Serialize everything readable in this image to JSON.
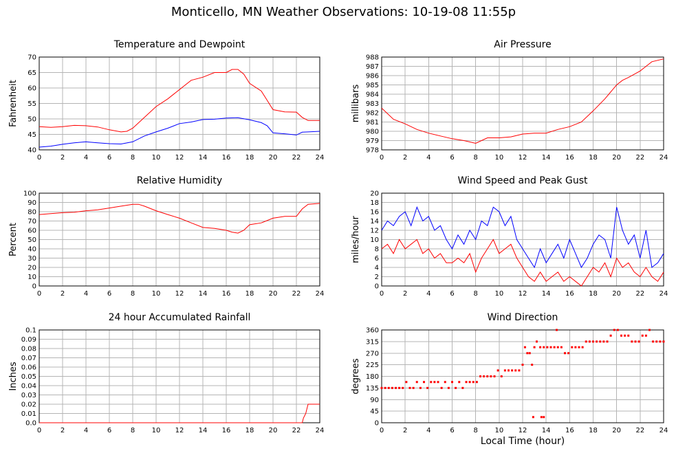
{
  "title": "Monticello, MN Weather Observations: 10-19-08 11:55p",
  "x_axis_title": "Local Time (hour)",
  "colors": {
    "temperature": "#ff0000",
    "dewpoint": "#0000ff",
    "gust": "#0000ff",
    "wind": "#ff0000",
    "pressure": "#ff0000",
    "humidity": "#ff0000",
    "rain": "#ff0000",
    "direction": "#ff0000",
    "grid": "#b4b4b4"
  },
  "chart_data": [
    {
      "id": "temperature",
      "type": "line",
      "title": "Temperature and Dewpoint",
      "ylabel": "Fahrenheit",
      "xlabel": "",
      "xlim": [
        0,
        24
      ],
      "ylim": [
        40,
        70
      ],
      "xticks": [
        0,
        2,
        4,
        6,
        8,
        10,
        12,
        14,
        16,
        18,
        20,
        22,
        24
      ],
      "yticks": [
        40,
        45,
        50,
        55,
        60,
        65,
        70
      ],
      "grid": true,
      "series": [
        {
          "color": "#ff0000",
          "x": [
            0,
            1,
            2,
            3,
            4,
            5,
            6,
            7,
            7.5,
            8,
            9,
            10,
            11,
            12,
            13,
            14,
            15,
            16,
            16.5,
            17,
            17.5,
            18,
            19,
            19.5,
            20,
            21,
            22,
            22.5,
            23,
            24
          ],
          "y": [
            47.5,
            47.3,
            47.5,
            47.9,
            47.8,
            47.4,
            46.5,
            45.8,
            46.0,
            47.0,
            50.5,
            54.0,
            56.5,
            59.5,
            62.5,
            63.5,
            65.0,
            65.0,
            66.0,
            66.0,
            64.5,
            61.5,
            59.0,
            56.0,
            53.0,
            52.3,
            52.2,
            50.5,
            49.5,
            49.5
          ]
        },
        {
          "color": "#0000ff",
          "x": [
            0,
            1,
            2,
            3,
            4,
            5,
            6,
            7,
            8,
            9,
            10,
            11,
            12,
            13,
            14,
            15,
            16,
            17,
            18,
            19,
            19.5,
            20,
            21,
            22,
            22.5,
            23,
            24
          ],
          "y": [
            40.9,
            41.2,
            41.8,
            42.3,
            42.6,
            42.3,
            42.0,
            41.9,
            42.6,
            44.5,
            45.8,
            47.0,
            48.5,
            49.0,
            49.8,
            49.9,
            50.3,
            50.4,
            49.7,
            48.8,
            47.8,
            45.5,
            45.2,
            44.8,
            45.7,
            45.8,
            46.0
          ]
        }
      ]
    },
    {
      "id": "pressure",
      "type": "line",
      "title": "Air Pressure",
      "ylabel": "millibars",
      "xlabel": "",
      "xlim": [
        0,
        24
      ],
      "ylim": [
        978,
        988
      ],
      "xticks": [
        0,
        2,
        4,
        6,
        8,
        10,
        12,
        14,
        16,
        18,
        20,
        22,
        24
      ],
      "yticks": [
        978,
        979,
        980,
        981,
        982,
        983,
        984,
        985,
        986,
        987,
        988
      ],
      "grid": true,
      "series": [
        {
          "color": "#ff0000",
          "x": [
            0,
            1,
            2,
            3,
            4,
            5,
            6,
            7,
            8,
            8.5,
            9,
            10,
            11,
            12,
            13,
            14,
            15,
            16,
            17,
            18,
            19,
            20,
            20.5,
            21,
            22,
            22.5,
            23,
            24
          ],
          "y": [
            982.5,
            981.3,
            980.8,
            980.2,
            979.8,
            979.5,
            979.2,
            979.0,
            978.7,
            979.0,
            979.3,
            979.3,
            979.4,
            979.7,
            979.8,
            979.8,
            980.2,
            980.5,
            981.0,
            982.2,
            983.5,
            985.0,
            985.5,
            985.8,
            986.5,
            987.0,
            987.5,
            987.8
          ]
        }
      ]
    },
    {
      "id": "humidity",
      "type": "line",
      "title": "Relative Humidity",
      "ylabel": "Percent",
      "xlabel": "",
      "xlim": [
        0,
        24
      ],
      "ylim": [
        0,
        100
      ],
      "xticks": [
        0,
        2,
        4,
        6,
        8,
        10,
        12,
        14,
        16,
        18,
        20,
        22,
        24
      ],
      "yticks": [
        0,
        10,
        20,
        30,
        40,
        50,
        60,
        70,
        80,
        90,
        100
      ],
      "grid": true,
      "series": [
        {
          "color": "#ff0000",
          "x": [
            0,
            1,
            2,
            3,
            4,
            5,
            6,
            7,
            8,
            8.5,
            9,
            10,
            11,
            12,
            13,
            14,
            15,
            16,
            16.5,
            17,
            17.5,
            18,
            19,
            20,
            21,
            22,
            22.5,
            23,
            24
          ],
          "y": [
            77,
            78,
            79,
            79.5,
            81,
            82,
            84,
            86,
            88,
            88,
            86,
            81,
            77,
            73,
            68,
            63,
            62,
            60,
            58,
            57,
            60,
            66,
            68,
            73,
            75,
            75,
            83,
            88,
            89
          ]
        }
      ]
    },
    {
      "id": "wind",
      "type": "line",
      "title": "Wind Speed and Peak Gust",
      "ylabel": "miles/hour",
      "xlabel": "",
      "xlim": [
        0,
        24
      ],
      "ylim": [
        0,
        20
      ],
      "xticks": [
        0,
        2,
        4,
        6,
        8,
        10,
        12,
        14,
        16,
        18,
        20,
        22,
        24
      ],
      "yticks": [
        0,
        2,
        4,
        6,
        8,
        10,
        12,
        14,
        16,
        18,
        20
      ],
      "grid": true,
      "series": [
        {
          "color": "#0000ff",
          "x": [
            0,
            0.5,
            1,
            1.5,
            2,
            2.5,
            3,
            3.5,
            4,
            4.5,
            5,
            5.5,
            6,
            6.5,
            7,
            7.5,
            8,
            8.5,
            9,
            9.5,
            10,
            10.5,
            11,
            11.5,
            12,
            12.5,
            13,
            13.5,
            14,
            14.5,
            15,
            15.5,
            16,
            16.5,
            17,
            17.5,
            18,
            18.5,
            19,
            19.5,
            20,
            20.5,
            21,
            21.5,
            22,
            22.5,
            23,
            23.5,
            24
          ],
          "y": [
            12,
            14,
            13,
            15,
            16,
            13,
            17,
            14,
            15,
            12,
            13,
            10,
            8,
            11,
            9,
            12,
            10,
            14,
            13,
            17,
            16,
            13,
            15,
            10,
            8,
            6,
            4,
            8,
            5,
            7,
            9,
            6,
            10,
            7,
            4,
            6,
            9,
            11,
            10,
            6,
            17,
            12,
            9,
            11,
            6,
            12,
            4,
            5,
            7
          ]
        },
        {
          "color": "#ff0000",
          "x": [
            0,
            0.5,
            1,
            1.5,
            2,
            2.5,
            3,
            3.5,
            4,
            4.5,
            5,
            5.5,
            6,
            6.5,
            7,
            7.5,
            8,
            8.5,
            9,
            9.5,
            10,
            10.5,
            11,
            11.5,
            12,
            12.5,
            13,
            13.5,
            14,
            14.5,
            15,
            15.5,
            16,
            16.5,
            17,
            17.5,
            18,
            18.5,
            19,
            19.5,
            20,
            20.5,
            21,
            21.5,
            22,
            22.5,
            23,
            23.5,
            24
          ],
          "y": [
            8,
            9,
            7,
            10,
            8,
            9,
            10,
            7,
            8,
            6,
            7,
            5,
            5,
            6,
            5,
            7,
            3,
            6,
            8,
            10,
            7,
            8,
            9,
            6,
            4,
            2,
            1,
            3,
            1,
            2,
            3,
            1,
            2,
            1,
            0,
            2,
            4,
            3,
            5,
            2,
            6,
            4,
            5,
            3,
            2,
            4,
            2,
            1,
            3
          ]
        }
      ]
    },
    {
      "id": "rainfall",
      "type": "line",
      "title": "24 hour Accumulated Rainfall",
      "ylabel": "Inches",
      "xlabel": "",
      "xlim": [
        0,
        24
      ],
      "ylim": [
        0,
        0.1
      ],
      "xticks": [
        0,
        2,
        4,
        6,
        8,
        10,
        12,
        14,
        16,
        18,
        20,
        22,
        24
      ],
      "yticks": [
        "0.0",
        "0.01",
        "0.02",
        "0.03",
        "0.04",
        "0.05",
        "0.06",
        "0.07",
        "0.08",
        "0.09",
        "0.1"
      ],
      "grid": true,
      "series": [
        {
          "color": "#ff0000",
          "x": [
            0,
            22.5,
            22.6,
            22.8,
            23,
            24
          ],
          "y": [
            0,
            0,
            0.005,
            0.01,
            0.02,
            0.02
          ]
        }
      ]
    },
    {
      "id": "direction",
      "type": "scatter",
      "title": "Wind Direction",
      "ylabel": "degrees",
      "xlabel": "Local Time (hour)",
      "xlim": [
        0,
        24
      ],
      "ylim": [
        0,
        360
      ],
      "xticks": [
        0,
        2,
        4,
        6,
        8,
        10,
        12,
        14,
        16,
        18,
        20,
        22,
        24
      ],
      "yticks": [
        0,
        45,
        90,
        135,
        180,
        225,
        270,
        315,
        360
      ],
      "grid": true,
      "series": [
        {
          "color": "#ff0000",
          "x": [
            0,
            0.3,
            0.6,
            0.9,
            1.2,
            1.5,
            1.8,
            2.1,
            2.4,
            2.7,
            3.0,
            3.3,
            3.6,
            3.9,
            4.2,
            4.5,
            4.8,
            5.1,
            5.4,
            5.7,
            6.0,
            6.3,
            6.6,
            6.9,
            7.2,
            7.5,
            7.8,
            8.1,
            8.4,
            8.7,
            9.0,
            9.3,
            9.6,
            9.9,
            10.2,
            10.5,
            10.8,
            11.1,
            11.4,
            11.7,
            12.0,
            12.2,
            12.4,
            12.6,
            12.8,
            13.0,
            13.2,
            13.5,
            13.8,
            14.1,
            14.4,
            14.7,
            15.0,
            15.3,
            15.6,
            15.9,
            16.2,
            16.5,
            16.8,
            17.1,
            17.4,
            17.7,
            18.0,
            18.3,
            18.6,
            18.9,
            19.2,
            19.5,
            19.8,
            20.1,
            20.4,
            20.7,
            21.0,
            21.3,
            21.6,
            21.9,
            22.2,
            22.5,
            22.8,
            23.1,
            23.4,
            23.7,
            24.0
          ],
          "y": [
            135,
            135,
            135,
            135,
            135,
            135,
            135,
            158,
            135,
            135,
            158,
            135,
            158,
            135,
            158,
            158,
            158,
            135,
            158,
            135,
            158,
            135,
            158,
            135,
            158,
            158,
            158,
            158,
            180,
            180,
            180,
            180,
            180,
            203,
            180,
            203,
            203,
            203,
            203,
            203,
            225,
            293,
            270,
            270,
            225,
            293,
            315,
            293,
            293,
            293,
            293,
            293,
            293,
            293,
            270,
            270,
            293,
            293,
            293,
            293,
            315,
            315,
            315,
            315,
            315,
            315,
            315,
            338,
            360,
            360,
            338,
            338,
            338,
            315,
            315,
            315,
            338,
            338,
            360,
            315,
            315,
            315,
            315
          ]
        },
        {
          "color": "#ff0000",
          "x": [
            12.9,
            13.6,
            13.8,
            14.9
          ],
          "y": [
            22,
            22,
            22,
            360
          ]
        }
      ]
    }
  ]
}
